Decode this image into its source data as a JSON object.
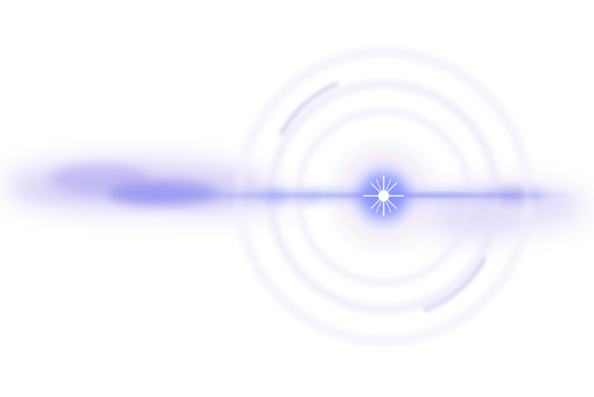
{
  "image": {
    "subject": "lens-flare",
    "background_color": "#ffffff",
    "colors": {
      "core": "#ffffff",
      "glow_inner": "#7a86ff",
      "glow_outer": "#b9a8f5",
      "streak": "#6f78f2",
      "haze": "#b8b0f0",
      "ring": "#d7d0f5",
      "ring_arc": "#9a8fd6",
      "rainbow_warm": "#f0c8d8",
      "rainbow_cool": "#c8e8f0"
    },
    "elements": [
      "bright-core",
      "starburst-rays",
      "horizontal-streak",
      "left-haze-cloud",
      "right-haze-cloud",
      "concentric-rings",
      "arc-fragments"
    ]
  }
}
